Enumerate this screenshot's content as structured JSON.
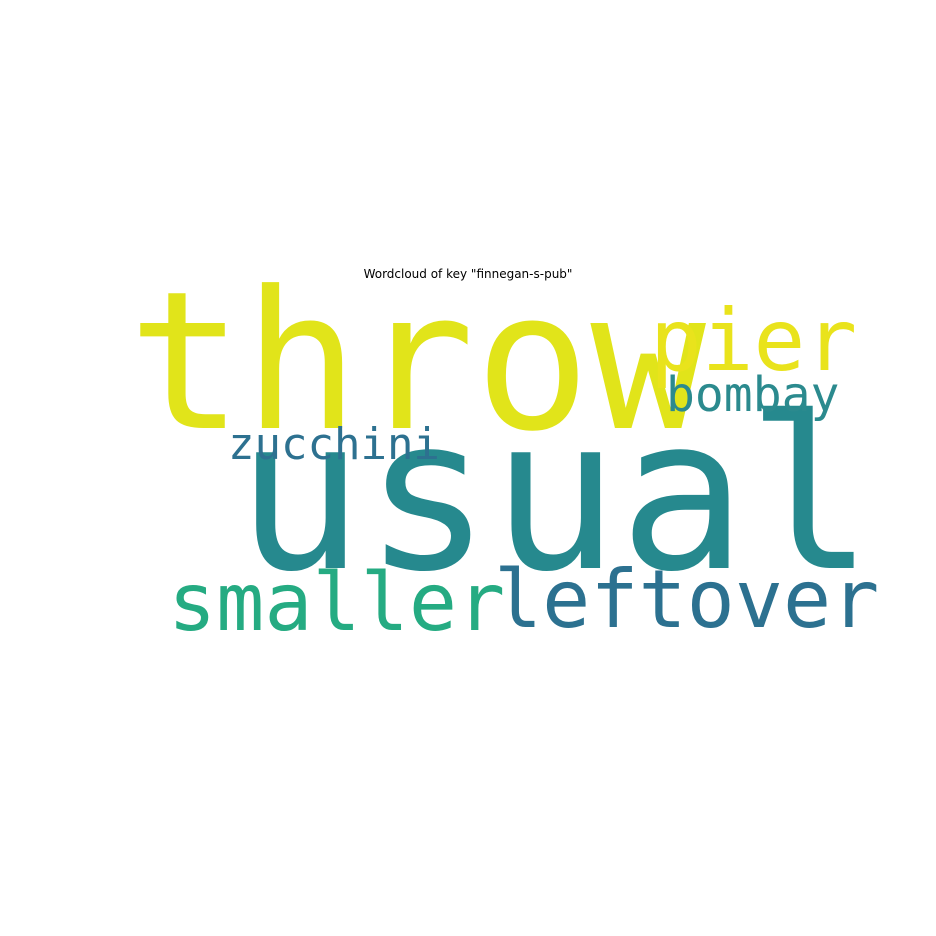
{
  "chart_data": {
    "type": "wordcloud",
    "title": "Wordcloud of key \"finnegan-s-pub\"",
    "words": [
      {
        "text": "usual",
        "weight": 1.0,
        "color": "#26898e"
      },
      {
        "text": "throw",
        "weight": 0.92,
        "color": "#e1e41a"
      },
      {
        "text": "leftover",
        "weight": 0.45,
        "color": "#2c7190"
      },
      {
        "text": "smaller",
        "weight": 0.45,
        "color": "#25ab82"
      },
      {
        "text": "pier",
        "weight": 0.44,
        "color": "#e9e31c"
      },
      {
        "text": "bombay",
        "weight": 0.3,
        "color": "#2b8a8e"
      },
      {
        "text": "zucchini",
        "weight": 0.28,
        "color": "#2d7190"
      }
    ]
  }
}
